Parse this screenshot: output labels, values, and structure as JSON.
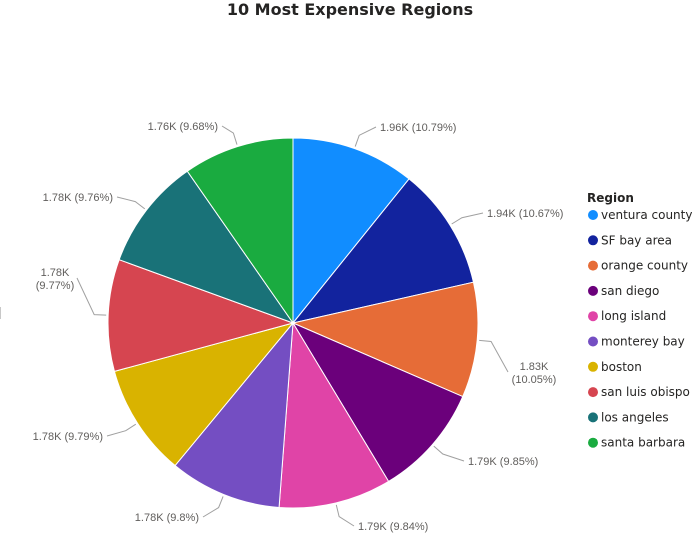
{
  "chart_data": {
    "type": "pie",
    "title": "10 Most Expensive Regions",
    "legend_title": "Region",
    "legend_position": "right",
    "slices": [
      {
        "name": "ventura county",
        "value": 1.96,
        "label": "1.96K (10.79%)",
        "color": "#118DFF"
      },
      {
        "name": "SF bay area",
        "value": 1.94,
        "label": "1.94K (10.67%)",
        "color": "#12239E"
      },
      {
        "name": "orange county",
        "value": 1.83,
        "label": "1.83K (10.05%)",
        "color": "#E66C37"
      },
      {
        "name": "san diego",
        "value": 1.79,
        "label": "1.79K (9.85%)",
        "color": "#6B007B"
      },
      {
        "name": "long island",
        "value": 1.79,
        "label": "1.79K (9.84%)",
        "color": "#E044A7"
      },
      {
        "name": "monterey bay",
        "value": 1.78,
        "label": "1.78K (9.8%)",
        "color": "#744EC2"
      },
      {
        "name": "boston",
        "value": 1.78,
        "label": "1.78K (9.79%)",
        "color": "#D9B300"
      },
      {
        "name": "san luis obispo",
        "value": 1.78,
        "label": "1.78K (9.77%)",
        "color": "#D64550"
      },
      {
        "name": "los angeles",
        "value": 1.78,
        "label": "1.78K (9.76%)",
        "color": "#197278"
      },
      {
        "name": "santa barbara",
        "value": 1.76,
        "label": "1.76K (9.68%)",
        "color": "#1AAB40"
      }
    ],
    "percentages": [
      10.79,
      10.67,
      10.05,
      9.85,
      9.84,
      9.8,
      9.79,
      9.77,
      9.76,
      9.68
    ]
  }
}
